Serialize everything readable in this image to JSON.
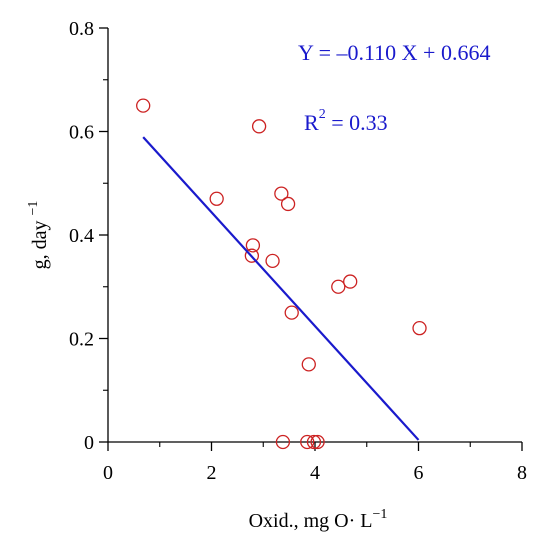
{
  "chart_data": {
    "type": "scatter",
    "x_ticks": [
      "0",
      "2",
      "4",
      "6",
      "8"
    ],
    "y_ticks": [
      "0",
      "0.2",
      "0.4",
      "0.6",
      "0.8"
    ],
    "xlim": [
      0,
      8
    ],
    "ylim": [
      0,
      0.8
    ],
    "xlabel": {
      "main": "Oxid., mg O· L",
      "sup": "−1"
    },
    "ylabel": {
      "main": "g, day ",
      "sup": "−1"
    },
    "points": [
      {
        "x": 0.68,
        "y": 0.65
      },
      {
        "x": 2.1,
        "y": 0.47
      },
      {
        "x": 2.8,
        "y": 0.38
      },
      {
        "x": 2.78,
        "y": 0.36
      },
      {
        "x": 2.92,
        "y": 0.61
      },
      {
        "x": 3.18,
        "y": 0.35
      },
      {
        "x": 3.35,
        "y": 0.48
      },
      {
        "x": 3.48,
        "y": 0.46
      },
      {
        "x": 3.55,
        "y": 0.25
      },
      {
        "x": 3.38,
        "y": 0.0
      },
      {
        "x": 3.88,
        "y": 0.15
      },
      {
        "x": 3.85,
        "y": 0.0
      },
      {
        "x": 3.98,
        "y": 0.0
      },
      {
        "x": 4.05,
        "y": 0.0
      },
      {
        "x": 4.45,
        "y": 0.3
      },
      {
        "x": 4.68,
        "y": 0.31
      },
      {
        "x": 6.02,
        "y": 0.22
      }
    ],
    "regression": {
      "x_start": 0.68,
      "x_end": 6.0,
      "slope": -0.11,
      "intercept": 0.664
    },
    "equation": "Y = –0.110  X + 0.664",
    "r2": {
      "label": "R",
      "sup": "2",
      "value": " = 0.33"
    },
    "colors": {
      "points": "#cc2222",
      "line": "#1a1acc",
      "axis": "#000000"
    }
  }
}
